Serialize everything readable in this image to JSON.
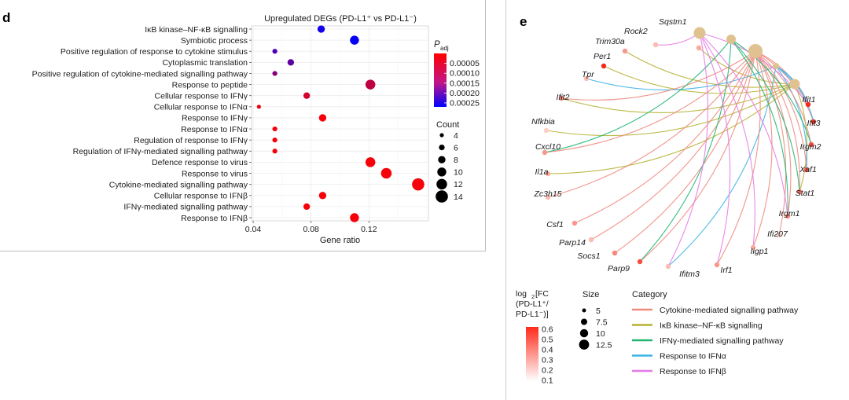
{
  "panel_d": {
    "letter": "d",
    "chart_data": {
      "type": "scatter",
      "title": "Upregulated DEGs (PD-L1⁺ vs PD-L1⁻)",
      "xlabel": "Gene ratio",
      "xlim": [
        0.04,
        0.16
      ],
      "xticks": [
        0.04,
        0.08,
        0.12
      ],
      "xtick_labels": [
        "0.04",
        "0.08",
        "0.12"
      ],
      "terms": [
        {
          "name": "IκB kinase–NF-κB signalling",
          "gene_ratio": 0.087,
          "count": 8,
          "padj": 0.00025
        },
        {
          "name": "Symbiotic process",
          "gene_ratio": 0.11,
          "count": 10,
          "padj": 0.00026
        },
        {
          "name": "Positive regulation of response to cytokine stimulus",
          "gene_ratio": 0.055,
          "count": 5,
          "padj": 0.00019
        },
        {
          "name": "Cytoplasmic translation",
          "gene_ratio": 0.066,
          "count": 7,
          "padj": 0.00017
        },
        {
          "name": "Positive regulation of cytokine-mediated signalling pathway",
          "gene_ratio": 0.055,
          "count": 5,
          "padj": 0.00013
        },
        {
          "name": "Response to peptide",
          "gene_ratio": 0.121,
          "count": 11,
          "padj": 7e-05
        },
        {
          "name": "Cellular response to IFNγ",
          "gene_ratio": 0.077,
          "count": 7,
          "padj": 5e-05
        },
        {
          "name": "Cellular response to IFNα",
          "gene_ratio": 0.044,
          "count": 4,
          "padj": 2e-05
        },
        {
          "name": "Response to IFNγ",
          "gene_ratio": 0.088,
          "count": 8,
          "padj": 1e-05
        },
        {
          "name": "Response to IFNα",
          "gene_ratio": 0.055,
          "count": 5,
          "padj": 1e-05
        },
        {
          "name": "Regulation of response to IFNγ",
          "gene_ratio": 0.055,
          "count": 5,
          "padj": 1e-05
        },
        {
          "name": "Regulation of IFNγ-mediated signalling pathway",
          "gene_ratio": 0.055,
          "count": 5,
          "padj": 1e-05
        },
        {
          "name": "Defence response to virus",
          "gene_ratio": 0.121,
          "count": 11,
          "padj": 1e-05
        },
        {
          "name": "Response to virus",
          "gene_ratio": 0.132,
          "count": 12,
          "padj": 1e-05
        },
        {
          "name": "Cytokine-mediated signalling pathway",
          "gene_ratio": 0.154,
          "count": 14,
          "padj": 1e-05
        },
        {
          "name": "Cellular response to IFNβ",
          "gene_ratio": 0.088,
          "count": 8,
          "padj": 1e-05
        },
        {
          "name": "IFNγ-mediated signalling pathway",
          "gene_ratio": 0.077,
          "count": 7,
          "padj": 1e-05
        },
        {
          "name": "Response to IFNβ",
          "gene_ratio": 0.11,
          "count": 10,
          "padj": 1e-05
        }
      ],
      "padj_legend": {
        "title": "P",
        "subscript": "adj",
        "range": [
          0.0,
          0.00027
        ],
        "ticks": [
          5e-05,
          0.0001,
          0.00015,
          0.0002,
          0.00025
        ],
        "tick_labels": [
          "0.00005",
          "0.00010",
          "0.00015",
          "0.00020",
          "0.00025"
        ],
        "colors": [
          "#ff0000",
          "#0000ff"
        ]
      },
      "count_legend": {
        "title": "Count",
        "values": [
          4,
          6,
          8,
          10,
          12,
          14
        ],
        "labels": [
          "4",
          "6",
          "8",
          "10",
          "12",
          "14"
        ]
      }
    }
  },
  "panel_e": {
    "letter": "e",
    "chart_data": {
      "type": "cnet",
      "categories": [
        {
          "name": "Cytokine-mediated signalling pathway",
          "color": "#f08a7e",
          "size": 14
        },
        {
          "name": "IκB kinase–NF-κB signalling",
          "color": "#b5b233",
          "size": 8
        },
        {
          "name": "IFNγ-mediated signalling pathway",
          "color": "#22b673",
          "size": 7
        },
        {
          "name": "Response to IFNα",
          "color": "#3bb3e6",
          "size": 5
        },
        {
          "name": "Response to IFNβ",
          "color": "#e57be6",
          "size": 10
        }
      ],
      "genes": [
        {
          "name": "Sqstm1",
          "fc": 0.25,
          "links": [
            1
          ]
        },
        {
          "name": "Rock2",
          "fc": 0.2,
          "links": [
            4
          ]
        },
        {
          "name": "Trim30a",
          "fc": 0.3,
          "links": [
            1
          ]
        },
        {
          "name": "Per1",
          "fc": 0.6,
          "links": [
            1
          ]
        },
        {
          "name": "Tpr",
          "fc": 0.2,
          "links": [
            3
          ]
        },
        {
          "name": "Ifit2",
          "fc": 0.35,
          "links": [
            0,
            1
          ]
        },
        {
          "name": "Nfkbia",
          "fc": 0.15,
          "links": [
            1
          ]
        },
        {
          "name": "Cxcl10",
          "fc": 0.3,
          "links": [
            0,
            2
          ]
        },
        {
          "name": "Il1a",
          "fc": 0.25,
          "links": [
            1
          ]
        },
        {
          "name": "Zc3h15",
          "fc": 0.2,
          "links": [
            0
          ]
        },
        {
          "name": "Csf1",
          "fc": 0.3,
          "links": [
            0
          ]
        },
        {
          "name": "Parp14",
          "fc": 0.2,
          "links": [
            0
          ]
        },
        {
          "name": "Socs1",
          "fc": 0.35,
          "links": [
            0
          ]
        },
        {
          "name": "Parp9",
          "fc": 0.5,
          "links": [
            0,
            2
          ]
        },
        {
          "name": "Ifitm3",
          "fc": 0.2,
          "links": [
            3,
            4
          ]
        },
        {
          "name": "Irf1",
          "fc": 0.3,
          "links": [
            0,
            4
          ]
        },
        {
          "name": "Iigp1",
          "fc": 0.25,
          "links": [
            0,
            4
          ]
        },
        {
          "name": "Ifi207",
          "fc": 0.15,
          "links": [
            0
          ]
        },
        {
          "name": "Irgm1",
          "fc": 0.35,
          "links": [
            0,
            2,
            4
          ]
        },
        {
          "name": "Stat1",
          "fc": 0.4,
          "links": [
            0,
            1,
            2
          ]
        },
        {
          "name": "Xaf1",
          "fc": 0.45,
          "links": [
            0,
            3
          ]
        },
        {
          "name": "Irgm2",
          "fc": 0.5,
          "links": [
            0,
            2
          ]
        },
        {
          "name": "Ifit3",
          "fc": 0.55,
          "links": [
            0,
            3
          ]
        },
        {
          "name": "Ifit1",
          "fc": 0.6,
          "links": [
            0,
            3,
            4
          ]
        }
      ],
      "fc_legend": {
        "title_lines": [
          "log",
          "[FC",
          "(PD-L1⁺/",
          "PD-L1⁻)]"
        ],
        "title_sub": "2",
        "ticks": [
          0.6,
          0.5,
          0.4,
          0.3,
          0.2,
          0.1
        ],
        "tick_labels": [
          "0.6",
          "0.5",
          "0.4",
          "0.3",
          "0.2",
          "0.1"
        ],
        "colors": [
          "#ffffff",
          "#ff2a1a"
        ]
      },
      "size_legend": {
        "title": "Size",
        "values": [
          5,
          7.5,
          10,
          12.5
        ],
        "labels": [
          "5",
          "7.5",
          "10",
          "12.5"
        ]
      },
      "category_legend_title": "Category"
    }
  }
}
